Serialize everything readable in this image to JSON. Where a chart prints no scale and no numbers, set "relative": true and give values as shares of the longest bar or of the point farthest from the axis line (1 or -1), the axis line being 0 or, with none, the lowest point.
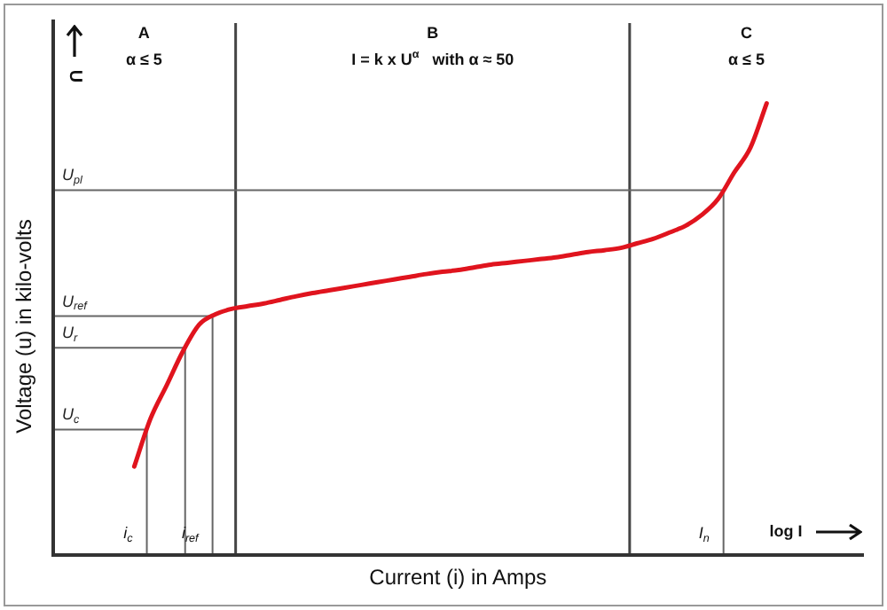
{
  "chart_data": {
    "type": "line",
    "relative": true,
    "marker": "none",
    "xlabel": "Current (i) in Amps",
    "ylabel": "Voltage (u) in kilo-volts",
    "categories": [
      null,
      null,
      null,
      null,
      null,
      null,
      null,
      null,
      null,
      null,
      null,
      null,
      null,
      null,
      null,
      null,
      null,
      null,
      null,
      null,
      null,
      null,
      null,
      null,
      null,
      null,
      null,
      null,
      null,
      null,
      null,
      null,
      null,
      null,
      null,
      null,
      null,
      null,
      null,
      null,
      null,
      null,
      null,
      null,
      null,
      null,
      null,
      null,
      null,
      null,
      null
    ],
    "series": [
      {
        "color": "#e0141e",
        "values": [
          null,
          null,
          null,
          null,
          null,
          0.196,
          0.302,
          0.376,
          0.451,
          0.51,
          0.533,
          0.545,
          0.551,
          0.557,
          0.565,
          0.573,
          0.58,
          0.586,
          0.592,
          0.598,
          0.604,
          0.61,
          0.616,
          0.622,
          0.627,
          0.631,
          0.637,
          0.643,
          0.647,
          0.651,
          0.655,
          0.659,
          0.665,
          0.671,
          0.675,
          0.68,
          0.69,
          0.7,
          0.714,
          0.729,
          0.753,
          0.788,
          0.847,
          0.902,
          1,
          null,
          null,
          null,
          null,
          null,
          null
        ]
      }
    ],
    "ref_lines": [
      {
        "axis": "y",
        "value": 0.808,
        "label": "U$_{pl}$"
      },
      {
        "axis": "y",
        "value": 0.529,
        "label": "U$_{ref}$"
      },
      {
        "axis": "y",
        "value": 0.459,
        "label": "U$_{r}$"
      },
      {
        "axis": "y",
        "value": 0.278,
        "label": "U$_{c}$"
      }
    ],
    "annotations": [
      "A",
      "α ≤ 5",
      "B",
      "I = k x U$^{α}$   with α ≈ 50",
      "C",
      "α ≤ 5",
      "U",
      "log I",
      "i$_{c}$",
      "i$_{ref}$",
      "I$_{n}$"
    ]
  }
}
